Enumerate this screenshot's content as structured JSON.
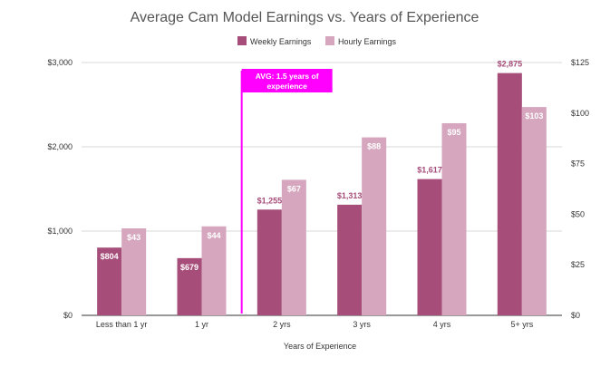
{
  "chart_data": {
    "type": "bar",
    "title": "Average Cam Model Earnings vs. Years of Experience",
    "xlabel": "Years of Experience",
    "categories": [
      "Less than 1 yr",
      "1 yr",
      "2 yrs",
      "3 yrs",
      "4 yrs",
      "5+ yrs"
    ],
    "series": [
      {
        "name": "Weekly Earnings",
        "axis": "left",
        "color": "#a64d79",
        "values": [
          804,
          679,
          1255,
          1313,
          1617,
          2875
        ],
        "labels": [
          "$804",
          "$679",
          "$1,255",
          "$1,313",
          "$1,617",
          "$2,875"
        ]
      },
      {
        "name": "Hourly Earnings",
        "axis": "right",
        "color": "#d5a6bd",
        "values": [
          43,
          44,
          67,
          88,
          95,
          103
        ],
        "labels": [
          "$43",
          "$44",
          "$67",
          "$88",
          "$95",
          "$103"
        ]
      }
    ],
    "y_left": {
      "min": 0,
      "max": 3000,
      "ticks": [
        "$0",
        "$1,000",
        "$2,000",
        "$3,000"
      ]
    },
    "y_right": {
      "min": 0,
      "max": 125,
      "ticks": [
        "$0",
        "$25",
        "$50",
        "$75",
        "$100",
        "$125"
      ]
    },
    "legend_position": "top-center",
    "grid": true,
    "annotation": {
      "text_line1": "AVG: 1.5 years of",
      "text_line2": "experience",
      "x_value": 1.5,
      "color": "#ff00ff"
    }
  }
}
